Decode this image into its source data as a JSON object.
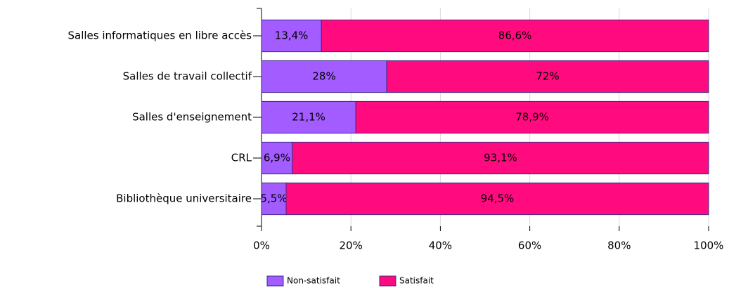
{
  "chart_data": {
    "type": "stacked_barh",
    "categories": [
      "Salles informatiques en libre accès",
      "Salles de travail collectif",
      "Salles d'enseignement",
      "CRL",
      "Bibliothèque universitaire"
    ],
    "series": [
      {
        "name": "Non-satisfait",
        "color": "#a25cff",
        "values": [
          13.4,
          28,
          21.1,
          6.9,
          5.5
        ],
        "value_labels": [
          "13,4%",
          "28%",
          "21,1%",
          "6,9%",
          "5,5%"
        ]
      },
      {
        "name": "Satisfait",
        "color": "#ff0a7f",
        "values": [
          86.6,
          72,
          78.9,
          93.1,
          94.5
        ],
        "value_labels": [
          "86,6%",
          "72%",
          "78,9%",
          "93,1%",
          "94,5%"
        ]
      }
    ],
    "xlim": [
      0,
      100
    ],
    "xticks": [
      {
        "value": 0,
        "label": "0%"
      },
      {
        "value": 20,
        "label": "20%"
      },
      {
        "value": 40,
        "label": "40%"
      },
      {
        "value": 60,
        "label": "60%"
      },
      {
        "value": 80,
        "label": "80%"
      },
      {
        "value": 100,
        "label": "100%"
      }
    ],
    "grid": true,
    "legend": "bottom"
  }
}
